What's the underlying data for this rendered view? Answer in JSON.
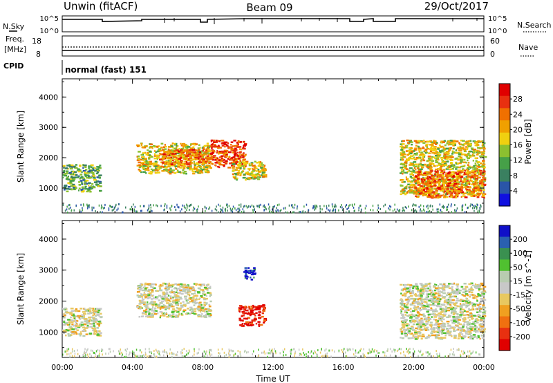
{
  "header": {
    "station": "Unwin (fitACF)",
    "beam": "Beam 09",
    "date": "29/Oct/2017",
    "cpid_label": "CPID",
    "cpid_value": "normal (fast) 151"
  },
  "noise_panel": {
    "left_label": "N.Sky",
    "right_label": "N.Search",
    "ticks_left": [
      "10^5",
      "10^0"
    ],
    "ticks_right": [
      "10^5",
      "10^0"
    ]
  },
  "freq_panel": {
    "left_label_1": "Freq.",
    "left_label_2": "[MHz]",
    "left_ticks": [
      "18",
      "8"
    ],
    "right_label": "Nave",
    "right_ticks": [
      "60",
      "0"
    ]
  },
  "chart_data": [
    {
      "type": "heatmap",
      "name": "power",
      "ylabel": "Slant Range [km]",
      "x_range_hours": [
        0,
        24
      ],
      "ylim": [
        180,
        4600
      ],
      "yticks": [
        "1000",
        "2000",
        "3000",
        "4000"
      ],
      "colorbar": {
        "label": "Power [dB]",
        "ticks": [
          "4",
          "8",
          "12",
          "16",
          "20",
          "24",
          "28"
        ],
        "colors": [
          "#1010e0",
          "#2a55a8",
          "#3a8060",
          "#46a048",
          "#8cc030",
          "#f0d010",
          "#f0a000",
          "#f07000",
          "#e83010",
          "#e00000"
        ]
      },
      "regions": [
        {
          "t0": 0.0,
          "t1": 2.15,
          "r0": 900,
          "r1": 1800,
          "level": 12
        },
        {
          "t0": 4.2,
          "t1": 8.4,
          "r0": 1500,
          "r1": 2500,
          "level": 16
        },
        {
          "t0": 5.5,
          "t1": 8.5,
          "r0": 1800,
          "r1": 2300,
          "level": 24
        },
        {
          "t0": 8.4,
          "t1": 10.4,
          "r0": 1700,
          "r1": 2600,
          "level": 28
        },
        {
          "t0": 9.6,
          "t1": 11.6,
          "r0": 1300,
          "r1": 1900,
          "level": 16
        },
        {
          "t0": 19.2,
          "t1": 24.0,
          "r0": 800,
          "r1": 2600,
          "level": 16
        },
        {
          "t0": 20.0,
          "t1": 24.0,
          "r0": 700,
          "r1": 1600,
          "level": 24
        }
      ]
    },
    {
      "type": "heatmap",
      "name": "velocity",
      "ylabel": "Slant Range [km]",
      "x_range_hours": [
        0,
        24
      ],
      "ylim": [
        180,
        4600
      ],
      "yticks": [
        "1000",
        "2000",
        "3000",
        "4000"
      ],
      "xticks": [
        "00:00",
        "04:00",
        "08:00",
        "12:00",
        "16:00",
        "20:00",
        "00:00"
      ],
      "xlabel": "Time UT",
      "colorbar": {
        "label": "Velocity [m s^-1]",
        "ticks": [
          "200",
          "100",
          "50",
          "15",
          "-15",
          "-50",
          "-100",
          "-200"
        ],
        "colors": [
          "#1010c8",
          "#2a60b0",
          "#3a9050",
          "#50c030",
          "#b8ccb0",
          "#c8c8c8",
          "#e8c860",
          "#f0a020",
          "#f07010",
          "#e83010",
          "#e00000"
        ]
      },
      "regions": [
        {
          "t0": 0.0,
          "t1": 2.15,
          "r0": 900,
          "r1": 1800,
          "level": 0
        },
        {
          "t0": 4.2,
          "t1": 8.4,
          "r0": 1500,
          "r1": 2600,
          "level": 0
        },
        {
          "t0": 10.0,
          "t1": 11.5,
          "r0": 1200,
          "r1": 1900,
          "level": -150
        },
        {
          "t0": 10.3,
          "t1": 10.9,
          "r0": 2700,
          "r1": 3100,
          "level": 200
        },
        {
          "t0": 19.2,
          "t1": 24.0,
          "r0": 800,
          "r1": 2600,
          "level": 0
        }
      ]
    }
  ]
}
